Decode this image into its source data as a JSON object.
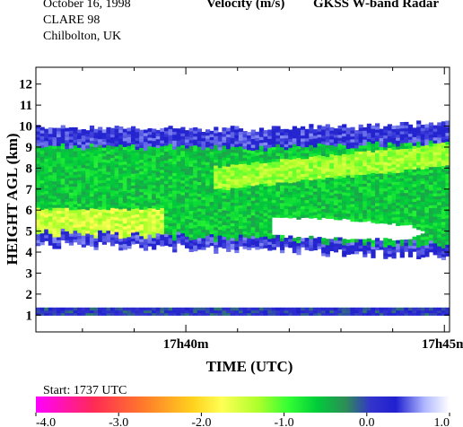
{
  "header": {
    "date": "October  16, 1998",
    "campaign": "CLARE 98",
    "site": "Chilbolton, UK",
    "quantity": "Velocity (m/s)",
    "instrument": "GKSS  W-band Radar"
  },
  "footer": {
    "start": "Start: 1737 UTC"
  },
  "colors": {
    "colormap": [
      "#ff00ff",
      "#ff2a55",
      "#ff7a2a",
      "#ffd21e",
      "#ffff55",
      "#aaff2a",
      "#33ff33",
      "#00cc3a",
      "#2e8b57",
      "#3333cc",
      "#2020d0",
      "#b0b8ff",
      "#ffffff"
    ],
    "colormap_stops": [
      -4.0,
      -3.3,
      -2.7,
      -2.1,
      -1.75,
      -1.3,
      -0.95,
      -0.6,
      -0.25,
      0.05,
      0.35,
      0.7,
      1.0
    ]
  },
  "chart_data": {
    "type": "heatmap",
    "x": {
      "label": "TIME (UTC)",
      "unit": "minutes after 17h00 UTC",
      "range": [
        37.1,
        45.1
      ],
      "ticks": [
        {
          "value": 40,
          "label": "17h40m"
        },
        {
          "value": 45,
          "label": "17h45m"
        }
      ]
    },
    "y": {
      "label": "HEIGHT AGL (km)",
      "range": [
        0.2,
        12.8
      ],
      "ticks": [
        1,
        2,
        3,
        4,
        5,
        6,
        7,
        8,
        9,
        10,
        11,
        12
      ]
    },
    "colorbar": {
      "range": [
        -4.0,
        1.0
      ],
      "tick_labels": [
        "-4.0",
        "-3.0",
        "-2.0",
        "-1.0",
        "0.0",
        "1.0"
      ],
      "tick_values": [
        -4.0,
        -3.0,
        -2.0,
        -1.0,
        0.0,
        1.0
      ]
    },
    "layers": {
      "cloud_top_km": [
        [
          37.1,
          9.9
        ],
        [
          41.0,
          9.8
        ],
        [
          43.0,
          9.9
        ],
        [
          45.1,
          10.1
        ]
      ],
      "cloud_base_km": [
        [
          37.1,
          4.4
        ],
        [
          38.5,
          4.3
        ],
        [
          40.0,
          4.2
        ],
        [
          41.5,
          4.1
        ],
        [
          43.0,
          3.95
        ],
        [
          45.1,
          3.85
        ]
      ],
      "gap_top_km": [
        [
          41.6,
          5.6
        ],
        [
          43.0,
          5.5
        ],
        [
          44.3,
          5.2
        ],
        [
          44.6,
          4.9
        ]
      ],
      "gap_bottom_km": [
        [
          41.6,
          4.7
        ],
        [
          43.0,
          4.6
        ],
        [
          44.3,
          4.5
        ],
        [
          44.6,
          4.9
        ]
      ],
      "low_layer_km": [
        1.0,
        1.35
      ]
    },
    "velocity_m_s": {
      "upper_cloud_edges": 0.2,
      "cloud_interior": -0.6,
      "fall_streak_core": -1.3,
      "lower_cloud_left": -1.5,
      "low_layer": 0.1
    }
  }
}
